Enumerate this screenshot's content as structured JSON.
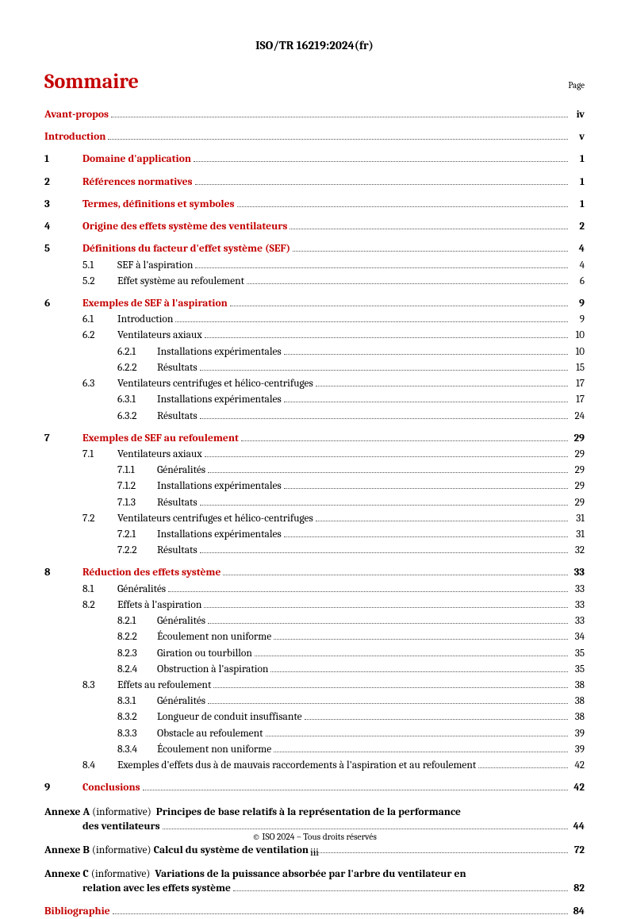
{
  "doc_id": "ISO/TR 16219:2024(fr)",
  "heading": "Sommaire",
  "page_label": "Page",
  "colors": {
    "accent": "#c40000",
    "text": "#000000",
    "leader": "#555555",
    "bg": "#ffffff"
  },
  "fonts": {
    "body_pt": 13.5,
    "heading_pt": 26,
    "docid_pt": 15,
    "footer_pt": 11.5
  },
  "toc": {
    "avant": {
      "label": "Avant-propos",
      "page": "iv"
    },
    "intro": {
      "label": "Introduction",
      "page": "v"
    },
    "s1": {
      "num": "1",
      "label": "Domaine d'application",
      "page": "1"
    },
    "s2": {
      "num": "2",
      "label": "Références normatives",
      "page": "1"
    },
    "s3": {
      "num": "3",
      "label": "Termes, définitions et symboles",
      "page": "1"
    },
    "s4": {
      "num": "4",
      "label": "Origine des effets système des ventilateurs",
      "page": "2"
    },
    "s5": {
      "num": "5",
      "label": "Définitions du facteur d'effet système (SEF)",
      "page": "4",
      "s51": {
        "num": "5.1",
        "label": "SEF à l'aspiration",
        "page": "4"
      },
      "s52": {
        "num": "5.2",
        "label": "Effet système au refoulement",
        "page": "6"
      }
    },
    "s6": {
      "num": "6",
      "label": "Exemples de SEF à l'aspiration",
      "page": "9",
      "s61": {
        "num": "6.1",
        "label": "Introduction",
        "page": "9"
      },
      "s62": {
        "num": "6.2",
        "label": "Ventilateurs axiaux",
        "page": "10",
        "s621": {
          "num": "6.2.1",
          "label": "Installations expérimentales",
          "page": "10"
        },
        "s622": {
          "num": "6.2.2",
          "label": "Résultats",
          "page": "15"
        }
      },
      "s63": {
        "num": "6.3",
        "label": "Ventilateurs centrifuges et hélico-centrifuges",
        "page": "17",
        "s631": {
          "num": "6.3.1",
          "label": "Installations expérimentales",
          "page": "17"
        },
        "s632": {
          "num": "6.3.2",
          "label": "Résultats",
          "page": "24"
        }
      }
    },
    "s7": {
      "num": "7",
      "label": "Exemples de SEF au refoulement",
      "page": "29",
      "s71": {
        "num": "7.1",
        "label": "Ventilateurs axiaux",
        "page": "29",
        "s711": {
          "num": "7.1.1",
          "label": "Généralités",
          "page": "29"
        },
        "s712": {
          "num": "7.1.2",
          "label": "Installations expérimentales",
          "page": "29"
        },
        "s713": {
          "num": "7.1.3",
          "label": "Résultats",
          "page": "29"
        }
      },
      "s72": {
        "num": "7.2",
        "label": "Ventilateurs centrifuges et hélico-centrifuges",
        "page": "31",
        "s721": {
          "num": "7.2.1",
          "label": "Installations expérimentales",
          "page": "31"
        },
        "s722": {
          "num": "7.2.2",
          "label": "Résultats",
          "page": "32"
        }
      }
    },
    "s8": {
      "num": "8",
      "label": "Réduction des effets système",
      "page": "33",
      "s81": {
        "num": "8.1",
        "label": "Généralités",
        "page": "33"
      },
      "s82": {
        "num": "8.2",
        "label": "Effets à l'aspiration",
        "page": "33",
        "s821": {
          "num": "8.2.1",
          "label": "Généralités",
          "page": "33"
        },
        "s822": {
          "num": "8.2.2",
          "label": "Écoulement non uniforme",
          "page": "34"
        },
        "s823": {
          "num": "8.2.3",
          "label": "Giration ou tourbillon",
          "page": "35"
        },
        "s824": {
          "num": "8.2.4",
          "label": "Obstruction à l'aspiration",
          "page": "35"
        }
      },
      "s83": {
        "num": "8.3",
        "label": "Effets au refoulement",
        "page": "38",
        "s831": {
          "num": "8.3.1",
          "label": "Généralités",
          "page": "38"
        },
        "s832": {
          "num": "8.3.2",
          "label": "Longueur de conduit insuffisante",
          "page": "38"
        },
        "s833": {
          "num": "8.3.3",
          "label": "Obstacle au refoulement",
          "page": "39"
        },
        "s834": {
          "num": "8.3.4",
          "label": "Écoulement non uniforme",
          "page": "39"
        }
      },
      "s84": {
        "num": "8.4",
        "label": "Exemples d'effets dus à de mauvais raccordements à l'aspiration et au refoulement",
        "page": "42"
      }
    },
    "s9": {
      "num": "9",
      "label": "Conclusions",
      "page": "42"
    },
    "annexA": {
      "prefix": "Annexe A",
      "info": "(informative)",
      "title": "Principes de base relatifs à la représentation de la performance",
      "title_cont": "des ventilateurs",
      "page": "44"
    },
    "annexB": {
      "prefix": "Annexe B",
      "info": "(informative)",
      "title": "Calcul du système de ventilation",
      "page": "72"
    },
    "annexC": {
      "prefix": "Annexe C",
      "info": "(informative)",
      "title": "Variations de la puissance absorbée par l'arbre du ventilateur en",
      "title_cont": "relation avec les effets système",
      "page": "82"
    },
    "biblio": {
      "label": "Bibliographie",
      "page": "84"
    }
  },
  "footer": {
    "copyright": "© ISO 2024 – Tous droits réservés",
    "page_number": "iii"
  }
}
